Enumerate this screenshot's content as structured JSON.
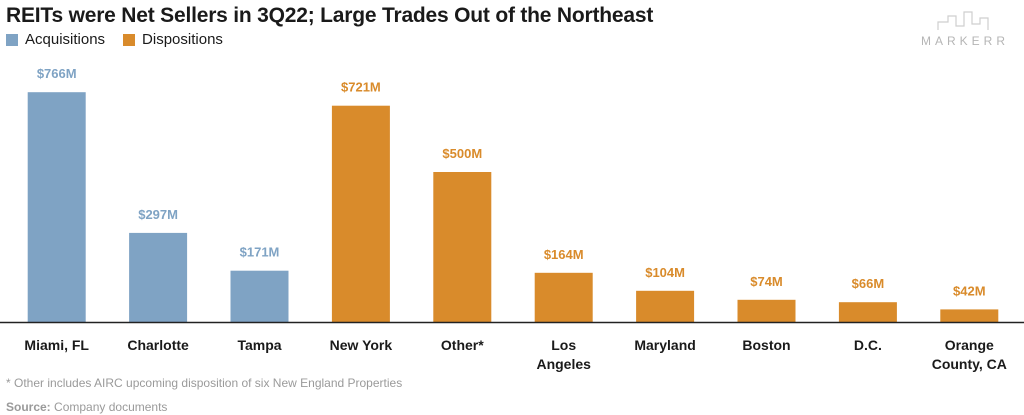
{
  "chart_data": {
    "type": "bar",
    "title": "REITs were Net Sellers in 3Q22; Large Trades Out of the Northeast",
    "xlabel": "",
    "ylabel": "",
    "ylim": [
      0,
      800
    ],
    "grid": false,
    "legend_position": "top-left",
    "series": [
      {
        "name": "Acquisitions",
        "color": "#7FA3C4",
        "categories": [
          "Miami, FL",
          "Charlotte",
          "Tampa"
        ],
        "values": [
          766,
          297,
          171
        ],
        "labels": [
          "$766M",
          "$297M",
          "$171M"
        ]
      },
      {
        "name": "Dispositions",
        "color": "#D98B2B",
        "categories": [
          "New York",
          "Other*",
          "Los Angeles",
          "Maryland",
          "Boston",
          "D.C.",
          "Orange County, CA"
        ],
        "values": [
          721,
          500,
          164,
          104,
          74,
          66,
          42
        ],
        "labels": [
          "$721M",
          "$500M",
          "$164M",
          "$104M",
          "$74M",
          "$66M",
          "$42M"
        ]
      }
    ],
    "category_lines": [
      [
        "Miami, FL"
      ],
      [
        "Charlotte"
      ],
      [
        "Tampa"
      ],
      [
        "New York"
      ],
      [
        "Other*"
      ],
      [
        "Los",
        "Angeles"
      ],
      [
        "Maryland"
      ],
      [
        "Boston"
      ],
      [
        "D.C."
      ],
      [
        "Orange",
        "County, CA"
      ]
    ]
  },
  "legend": {
    "acquisitions": "Acquisitions",
    "dispositions": "Dispositions"
  },
  "brand": {
    "name": "MARKERR",
    "icon": "skyline-logo-icon"
  },
  "footnote": "* Other includes AIRC upcoming disposition of six New England Properties",
  "source": {
    "label": "Source:",
    "text": "Company documents"
  },
  "colors": {
    "acquisitions": "#7FA3C4",
    "dispositions": "#D98B2B",
    "axis": "#222222",
    "note": "#9a9a9a"
  }
}
